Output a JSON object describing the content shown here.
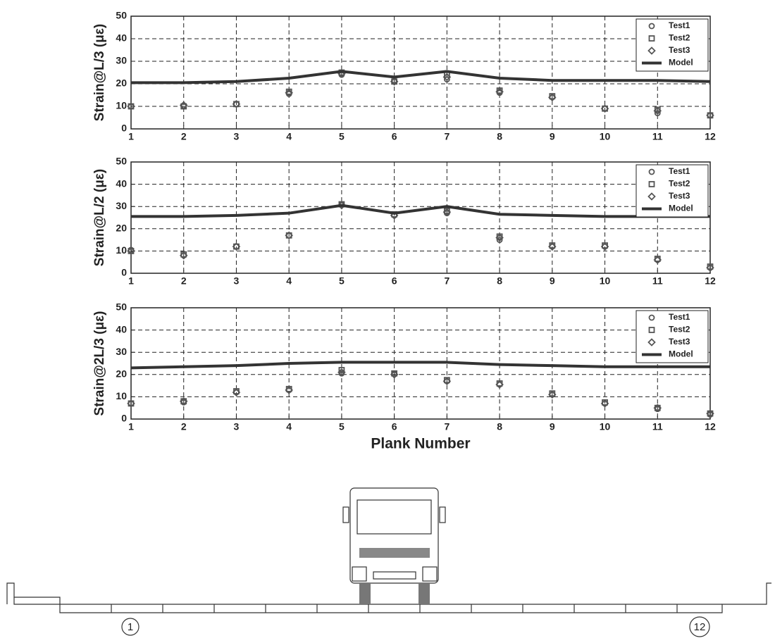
{
  "chart_data": [
    {
      "type": "scatter",
      "ylabel": "Strain@L/3 (με)",
      "x": [
        1,
        2,
        3,
        4,
        5,
        6,
        7,
        8,
        9,
        10,
        11,
        12
      ],
      "xlim": [
        1,
        12
      ],
      "xticks": [
        1,
        2,
        3,
        4,
        5,
        6,
        7,
        8,
        9,
        10,
        11,
        12
      ],
      "ylim": [
        0,
        50
      ],
      "yticks": [
        0,
        10,
        20,
        30,
        40,
        50
      ],
      "grid": true,
      "legend": "upper right",
      "series": [
        {
          "name": "Test1",
          "marker": "circle",
          "color": "#555555",
          "values": [
            10,
            10,
            11,
            15.5,
            24,
            21.5,
            22,
            16,
            14,
            9,
            7,
            6
          ]
        },
        {
          "name": "Test2",
          "marker": "square",
          "color": "#555555",
          "values": [
            10,
            10,
            11,
            16.5,
            25,
            21,
            24,
            17,
            14.5,
            9,
            8.5,
            6
          ]
        },
        {
          "name": "Test3",
          "marker": "diamond",
          "color": "#555555",
          "values": [
            10,
            10.5,
            11,
            16,
            24.5,
            21,
            23,
            16.5,
            14,
            9,
            8,
            6
          ]
        },
        {
          "name": "Model",
          "marker": "line",
          "color": "#333333",
          "values": [
            20.5,
            20.5,
            21,
            22.5,
            25.5,
            23,
            25.5,
            22.5,
            21.5,
            21.5,
            21.5,
            21
          ]
        }
      ]
    },
    {
      "type": "scatter",
      "ylabel": "Strain@L/2 (με)",
      "x": [
        1,
        2,
        3,
        4,
        5,
        6,
        7,
        8,
        9,
        10,
        11,
        12
      ],
      "xlim": [
        1,
        12
      ],
      "xticks": [
        1,
        2,
        3,
        4,
        5,
        6,
        7,
        8,
        9,
        10,
        11,
        12
      ],
      "ylim": [
        0,
        50
      ],
      "yticks": [
        0,
        10,
        20,
        30,
        40,
        50
      ],
      "grid": true,
      "legend": "upper right",
      "series": [
        {
          "name": "Test1",
          "marker": "circle",
          "color": "#555555",
          "values": [
            10.5,
            8,
            12,
            17,
            31,
            26,
            27,
            15,
            12,
            12,
            6,
            2.5
          ]
        },
        {
          "name": "Test2",
          "marker": "square",
          "color": "#555555",
          "values": [
            10,
            8.5,
            12,
            17,
            31,
            26.5,
            28,
            16.5,
            12.5,
            12.5,
            6.5,
            3
          ]
        },
        {
          "name": "Test3",
          "marker": "diamond",
          "color": "#555555",
          "values": [
            10,
            8,
            12,
            17,
            30.5,
            26,
            27.5,
            16,
            12,
            12,
            6,
            2.5
          ]
        },
        {
          "name": "Model",
          "marker": "line",
          "color": "#333333",
          "values": [
            25.5,
            25.5,
            26,
            27,
            30.5,
            27,
            30,
            26.5,
            26,
            25.5,
            25.5,
            25.5
          ]
        }
      ]
    },
    {
      "type": "scatter",
      "ylabel": "Strain@2L/3 (με)",
      "xlabel": "Plank Number",
      "x": [
        1,
        2,
        3,
        4,
        5,
        6,
        7,
        8,
        9,
        10,
        11,
        12
      ],
      "xlim": [
        1,
        12
      ],
      "xticks": [
        1,
        2,
        3,
        4,
        5,
        6,
        7,
        8,
        9,
        10,
        11,
        12
      ],
      "ylim": [
        0,
        50
      ],
      "yticks": [
        0,
        10,
        20,
        30,
        40,
        50
      ],
      "grid": true,
      "legend": "upper right",
      "series": [
        {
          "name": "Test1",
          "marker": "circle",
          "color": "#555555",
          "values": [
            7,
            7.5,
            12,
            13,
            20.5,
            20.5,
            17,
            15.5,
            11,
            7,
            4.5,
            2
          ]
        },
        {
          "name": "Test2",
          "marker": "square",
          "color": "#555555",
          "values": [
            7,
            8,
            12.5,
            13.5,
            22,
            20.5,
            17.5,
            16,
            11.5,
            7.5,
            5,
            2.5
          ]
        },
        {
          "name": "Test3",
          "marker": "diamond",
          "color": "#555555",
          "values": [
            7,
            8,
            12,
            13,
            21,
            20,
            17,
            15.5,
            11,
            7,
            5,
            2.5
          ]
        },
        {
          "name": "Model",
          "marker": "line",
          "color": "#333333",
          "values": [
            23,
            23.5,
            24,
            25,
            25.5,
            25.5,
            25.5,
            24.5,
            24,
            23.5,
            23.5,
            23.5
          ]
        }
      ]
    }
  ],
  "diagram": {
    "labels": [
      "1",
      "12"
    ]
  }
}
